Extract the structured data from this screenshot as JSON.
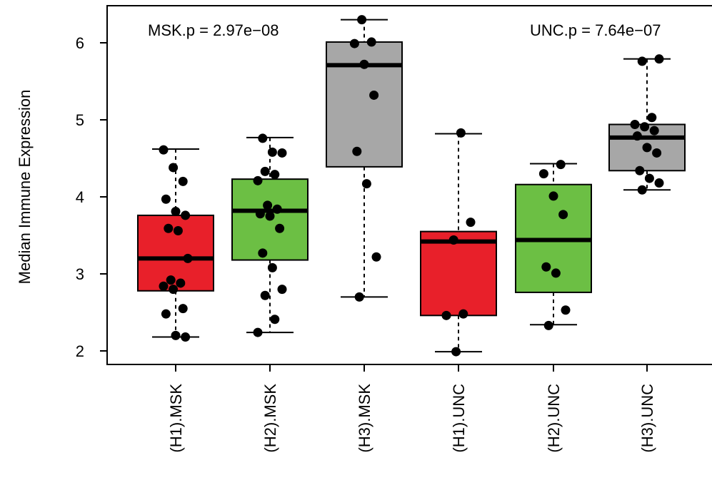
{
  "chart_data": {
    "type": "boxplot",
    "ylabel": "Median Immune Expression",
    "ylim": [
      1.8,
      6.5
    ],
    "yticks": [
      "2",
      "3",
      "4",
      "5",
      "6"
    ],
    "categories": [
      "(H1).MSK",
      "(H2).MSK",
      "(H3).MSK",
      "(H1).UNC",
      "(H2).UNC",
      "(H3).UNC"
    ],
    "colors": {
      "H1": "#e8202a",
      "H2": "#6cbf44",
      "H3": "#a7a7a7",
      "point": "#000000"
    },
    "annotations": {
      "left": "MSK.p = 2.97e−08",
      "right": "UNC.p = 7.64e−07"
    },
    "boxes": [
      {
        "group": "H1",
        "min": 2.18,
        "q1": 2.78,
        "median": 3.2,
        "q3": 3.76,
        "max": 4.62
      },
      {
        "group": "H2",
        "min": 2.24,
        "q1": 3.18,
        "median": 3.82,
        "q3": 4.23,
        "max": 4.77
      },
      {
        "group": "H3",
        "min": 2.7,
        "q1": 4.39,
        "median": 5.71,
        "q3": 6.01,
        "max": 6.3
      },
      {
        "group": "H1",
        "min": 1.99,
        "q1": 2.46,
        "median": 3.42,
        "q3": 3.55,
        "max": 4.82
      },
      {
        "group": "H2",
        "min": 2.34,
        "q1": 2.76,
        "median": 3.44,
        "q3": 4.16,
        "max": 4.43
      },
      {
        "group": "H3",
        "min": 4.09,
        "q1": 4.34,
        "median": 4.77,
        "q3": 4.94,
        "max": 5.79
      }
    ],
    "points": [
      [
        4.61,
        4.38,
        4.2,
        3.97,
        3.81,
        3.76,
        3.59,
        3.56,
        3.2,
        2.92,
        2.88,
        2.84,
        2.8,
        2.55,
        2.48,
        2.2,
        2.18
      ],
      [
        4.76,
        4.58,
        4.57,
        4.33,
        4.29,
        4.21,
        3.89,
        3.84,
        3.78,
        3.75,
        3.59,
        3.27,
        3.08,
        2.8,
        2.72,
        2.41,
        2.24
      ],
      [
        6.3,
        6.01,
        5.99,
        5.72,
        5.32,
        4.59,
        4.17,
        3.22,
        2.7
      ],
      [
        4.83,
        3.67,
        3.44,
        2.48,
        2.46,
        1.99
      ],
      [
        4.42,
        4.3,
        4.01,
        3.77,
        3.09,
        3.01,
        2.53,
        2.33
      ],
      [
        5.79,
        5.76,
        5.03,
        4.94,
        4.91,
        4.86,
        4.79,
        4.64,
        4.57,
        4.34,
        4.24,
        4.18,
        4.09
      ]
    ]
  }
}
